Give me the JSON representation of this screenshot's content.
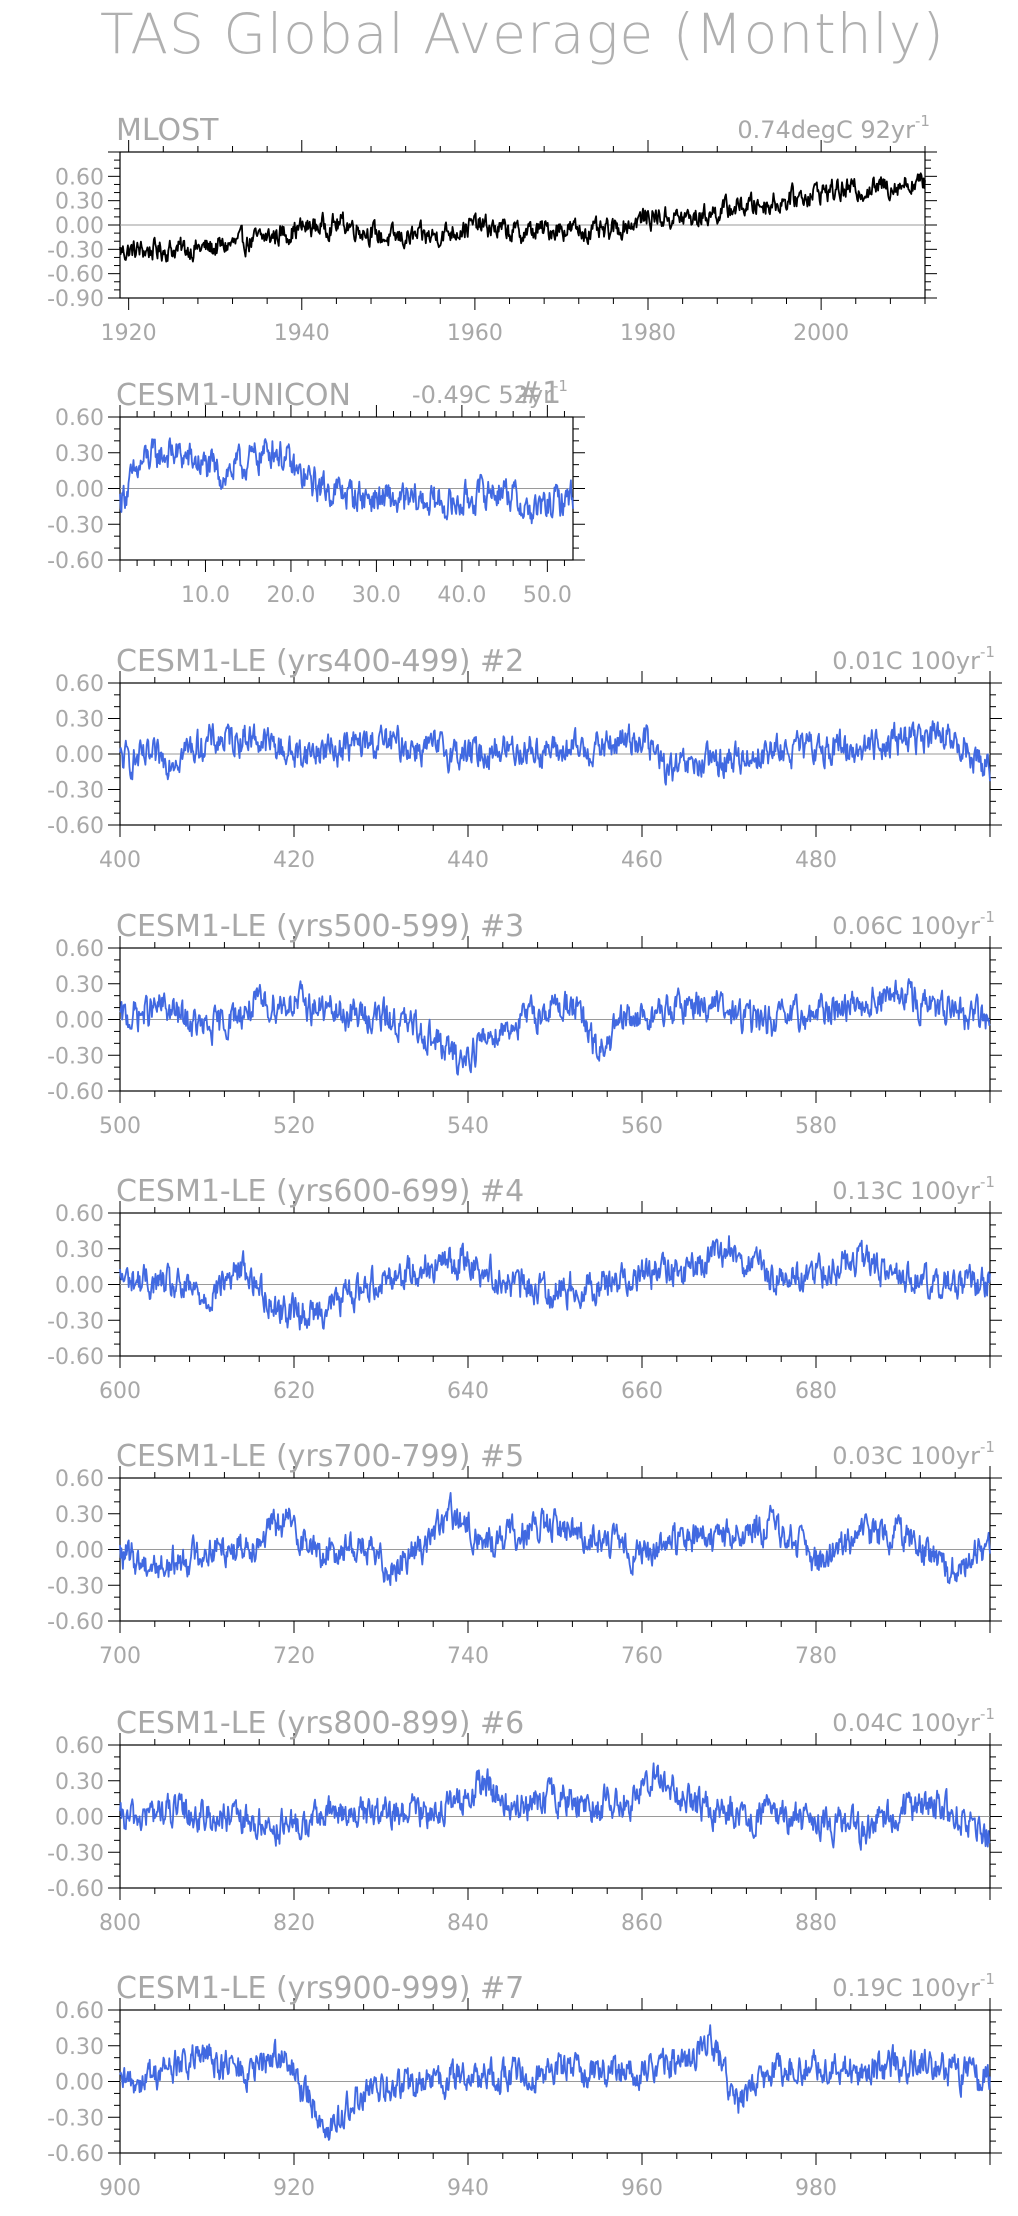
{
  "title": "TAS Global Average (Monthly)",
  "chart_data": [
    {
      "type": "line",
      "title": "MLOST",
      "trend": "0.74degC 92yr",
      "trend_unit": "-1",
      "x_range": [
        1919,
        2012
      ],
      "ylim": [
        -0.9,
        0.9
      ],
      "yticks": [
        "0.60",
        "0.30",
        "0.00",
        "-0.30",
        "-0.60",
        "-0.90"
      ],
      "ytick_values": [
        0.6,
        0.3,
        0.0,
        -0.3,
        -0.6,
        -0.9
      ],
      "xticks": [
        "1920",
        "1940",
        "1960",
        "1980",
        "2000"
      ],
      "xtick_values": [
        1920,
        1940,
        1960,
        1980,
        2000
      ],
      "color": "#000000",
      "series": [
        {
          "x": [
            1920,
            1925,
            1930,
            1935,
            1940,
            1945,
            1950,
            1955,
            1960,
            1965,
            1970,
            1975,
            1980,
            1985,
            1990,
            1995,
            2000,
            2005,
            2010
          ],
          "values": [
            -0.32,
            -0.3,
            -0.28,
            -0.18,
            -0.04,
            0.02,
            -0.17,
            -0.14,
            0.0,
            -0.1,
            -0.04,
            -0.1,
            0.1,
            0.08,
            0.22,
            0.28,
            0.42,
            0.44,
            0.52
          ]
        }
      ]
    },
    {
      "type": "line",
      "title": "CESM1-UNICON",
      "run": "#1",
      "trend": "-0.49C 52yr",
      "trend_unit": "-1",
      "x_range": [
        0,
        53
      ],
      "ylim": [
        -0.6,
        0.6
      ],
      "yticks": [
        "0.60",
        "0.30",
        "0.00",
        "-0.30",
        "-0.60"
      ],
      "ytick_values": [
        0.6,
        0.3,
        0.0,
        -0.3,
        -0.6
      ],
      "xticks": [
        "10.0",
        "20.0",
        "30.0",
        "40.0",
        "50.0"
      ],
      "xtick_values": [
        10,
        20,
        30,
        40,
        50
      ],
      "color": "#4169e1",
      "series": [
        {
          "x": [
            0,
            3,
            6,
            9,
            12,
            15,
            18,
            21,
            24,
            27,
            30,
            33,
            36,
            39,
            42,
            45,
            48,
            51,
            53
          ],
          "values": [
            -0.1,
            0.25,
            0.3,
            0.22,
            0.12,
            0.22,
            0.35,
            0.1,
            0.0,
            -0.05,
            -0.08,
            -0.12,
            -0.1,
            -0.14,
            -0.05,
            0.0,
            -0.2,
            -0.12,
            -0.05
          ]
        }
      ]
    },
    {
      "type": "line",
      "title": "CESM1-LE (yrs400-499) #2",
      "trend": "0.01C 100yr",
      "trend_unit": "-1",
      "x_range": [
        400,
        500
      ],
      "ylim": [
        -0.6,
        0.6
      ],
      "yticks": [
        "0.60",
        "0.30",
        "0.00",
        "-0.30",
        "-0.60"
      ],
      "ytick_values": [
        0.6,
        0.3,
        0.0,
        -0.3,
        -0.6
      ],
      "xticks": [
        "400",
        "420",
        "440",
        "460",
        "480"
      ],
      "xtick_values": [
        400,
        420,
        440,
        460,
        480
      ],
      "color": "#4169e1",
      "series": [
        {
          "x": [
            400,
            405,
            410,
            415,
            420,
            425,
            430,
            435,
            440,
            445,
            450,
            455,
            460,
            463,
            466,
            470,
            475,
            480,
            485,
            490,
            495,
            500
          ],
          "values": [
            -0.05,
            -0.05,
            0.1,
            0.15,
            0.0,
            0.05,
            0.1,
            0.05,
            0.0,
            0.05,
            0.02,
            0.05,
            0.15,
            -0.15,
            -0.1,
            -0.05,
            0.02,
            0.05,
            0.05,
            0.15,
            0.12,
            -0.1
          ]
        }
      ]
    },
    {
      "type": "line",
      "title": "CESM1-LE (yrs500-599) #3",
      "trend": "0.06C 100yr",
      "trend_unit": "-1",
      "x_range": [
        500,
        600
      ],
      "ylim": [
        -0.6,
        0.6
      ],
      "yticks": [
        "0.60",
        "0.30",
        "0.00",
        "-0.30",
        "-0.60"
      ],
      "ytick_values": [
        0.6,
        0.3,
        0.0,
        -0.3,
        -0.6
      ],
      "xticks": [
        "500",
        "520",
        "540",
        "560",
        "580"
      ],
      "xtick_values": [
        500,
        520,
        540,
        560,
        580
      ],
      "color": "#4169e1",
      "series": [
        {
          "x": [
            500,
            505,
            510,
            515,
            520,
            525,
            530,
            535,
            539,
            543,
            548,
            552,
            555,
            558,
            562,
            567,
            570,
            575,
            580,
            585,
            590,
            595,
            600
          ],
          "values": [
            0.0,
            0.1,
            -0.1,
            0.1,
            0.15,
            0.05,
            0.02,
            -0.1,
            -0.35,
            -0.1,
            0.05,
            0.15,
            -0.3,
            0.0,
            0.05,
            0.15,
            0.05,
            -0.02,
            0.05,
            0.15,
            0.2,
            0.05,
            0.02
          ]
        }
      ]
    },
    {
      "type": "line",
      "title": "CESM1-LE (yrs600-699) #4",
      "trend": "0.13C 100yr",
      "trend_unit": "-1",
      "x_range": [
        600,
        700
      ],
      "ylim": [
        -0.6,
        0.6
      ],
      "yticks": [
        "0.60",
        "0.30",
        "0.00",
        "-0.30",
        "-0.60"
      ],
      "ytick_values": [
        0.6,
        0.3,
        0.0,
        -0.3,
        -0.6
      ],
      "xticks": [
        "600",
        "620",
        "640",
        "660",
        "680"
      ],
      "xtick_values": [
        600,
        620,
        640,
        660,
        680
      ],
      "color": "#4169e1",
      "series": [
        {
          "x": [
            600,
            605,
            610,
            614,
            618,
            622,
            626,
            630,
            635,
            640,
            645,
            650,
            655,
            660,
            665,
            670,
            675,
            680,
            685,
            690,
            695,
            700
          ],
          "values": [
            0.05,
            0.0,
            -0.1,
            0.15,
            -0.2,
            -0.25,
            -0.1,
            0.05,
            0.15,
            0.2,
            0.0,
            -0.05,
            0.0,
            0.1,
            0.1,
            0.3,
            0.05,
            0.1,
            0.2,
            0.05,
            0.0,
            0.05
          ]
        }
      ]
    },
    {
      "type": "line",
      "title": "CESM1-LE (yrs700-799) #5",
      "trend": "0.03C 100yr",
      "trend_unit": "-1",
      "x_range": [
        700,
        800
      ],
      "ylim": [
        -0.6,
        0.6
      ],
      "yticks": [
        "0.60",
        "0.30",
        "0.00",
        "-0.30",
        "-0.60"
      ],
      "ytick_values": [
        0.6,
        0.3,
        0.0,
        -0.3,
        -0.6
      ],
      "xticks": [
        "700",
        "720",
        "740",
        "760",
        "780"
      ],
      "xtick_values": [
        700,
        720,
        740,
        760,
        780
      ],
      "color": "#4169e1",
      "series": [
        {
          "x": [
            700,
            705,
            710,
            715,
            719,
            723,
            727,
            731,
            735,
            738,
            742,
            746,
            750,
            755,
            760,
            765,
            770,
            775,
            780,
            785,
            790,
            795,
            800
          ],
          "values": [
            -0.05,
            -0.15,
            0.0,
            0.05,
            0.25,
            -0.05,
            0.05,
            -0.15,
            0.05,
            0.3,
            0.05,
            0.15,
            0.2,
            0.1,
            -0.05,
            0.1,
            0.1,
            0.2,
            -0.1,
            0.1,
            0.15,
            -0.2,
            0.05
          ]
        }
      ]
    },
    {
      "type": "line",
      "title": "CESM1-LE (yrs800-899) #6",
      "trend": "0.04C 100yr",
      "trend_unit": "-1",
      "x_range": [
        800,
        900
      ],
      "ylim": [
        -0.6,
        0.6
      ],
      "yticks": [
        "0.60",
        "0.30",
        "0.00",
        "-0.30",
        "-0.60"
      ],
      "ytick_values": [
        0.6,
        0.3,
        0.0,
        -0.3,
        -0.6
      ],
      "xticks": [
        "800",
        "820",
        "840",
        "860",
        "880"
      ],
      "xtick_values": [
        800,
        820,
        840,
        860,
        880
      ],
      "color": "#4169e1",
      "series": [
        {
          "x": [
            800,
            805,
            810,
            815,
            820,
            825,
            830,
            835,
            839,
            842,
            845,
            850,
            855,
            859,
            862,
            865,
            870,
            875,
            880,
            885,
            890,
            895,
            900
          ],
          "values": [
            -0.05,
            0.05,
            0.0,
            -0.05,
            -0.1,
            0.05,
            0.0,
            0.05,
            0.1,
            0.3,
            0.05,
            0.15,
            0.1,
            0.15,
            0.35,
            0.1,
            0.05,
            0.0,
            -0.05,
            -0.1,
            0.05,
            0.1,
            -0.2
          ]
        }
      ]
    },
    {
      "type": "line",
      "title": "CESM1-LE (yrs900-999) #7",
      "trend": "0.19C 100yr",
      "trend_unit": "-1",
      "x_range": [
        900,
        1000
      ],
      "ylim": [
        -0.6,
        0.6
      ],
      "yticks": [
        "0.60",
        "0.30",
        "0.00",
        "-0.30",
        "-0.60"
      ],
      "ytick_values": [
        0.6,
        0.3,
        0.0,
        -0.3,
        -0.6
      ],
      "xticks": [
        "900",
        "920",
        "940",
        "960",
        "980"
      ],
      "xtick_values": [
        900,
        920,
        940,
        960,
        980
      ],
      "color": "#4169e1",
      "series": [
        {
          "x": [
            900,
            905,
            910,
            915,
            918,
            921,
            924,
            928,
            932,
            936,
            940,
            945,
            950,
            955,
            960,
            965,
            968,
            971,
            975,
            980,
            985,
            990,
            995,
            1000
          ],
          "values": [
            -0.05,
            0.1,
            0.2,
            0.05,
            0.25,
            -0.05,
            -0.4,
            -0.1,
            -0.05,
            0.0,
            0.05,
            0.05,
            0.1,
            0.1,
            0.1,
            0.15,
            0.35,
            -0.2,
            0.1,
            0.15,
            0.1,
            0.15,
            0.1,
            0.0
          ]
        }
      ]
    }
  ]
}
